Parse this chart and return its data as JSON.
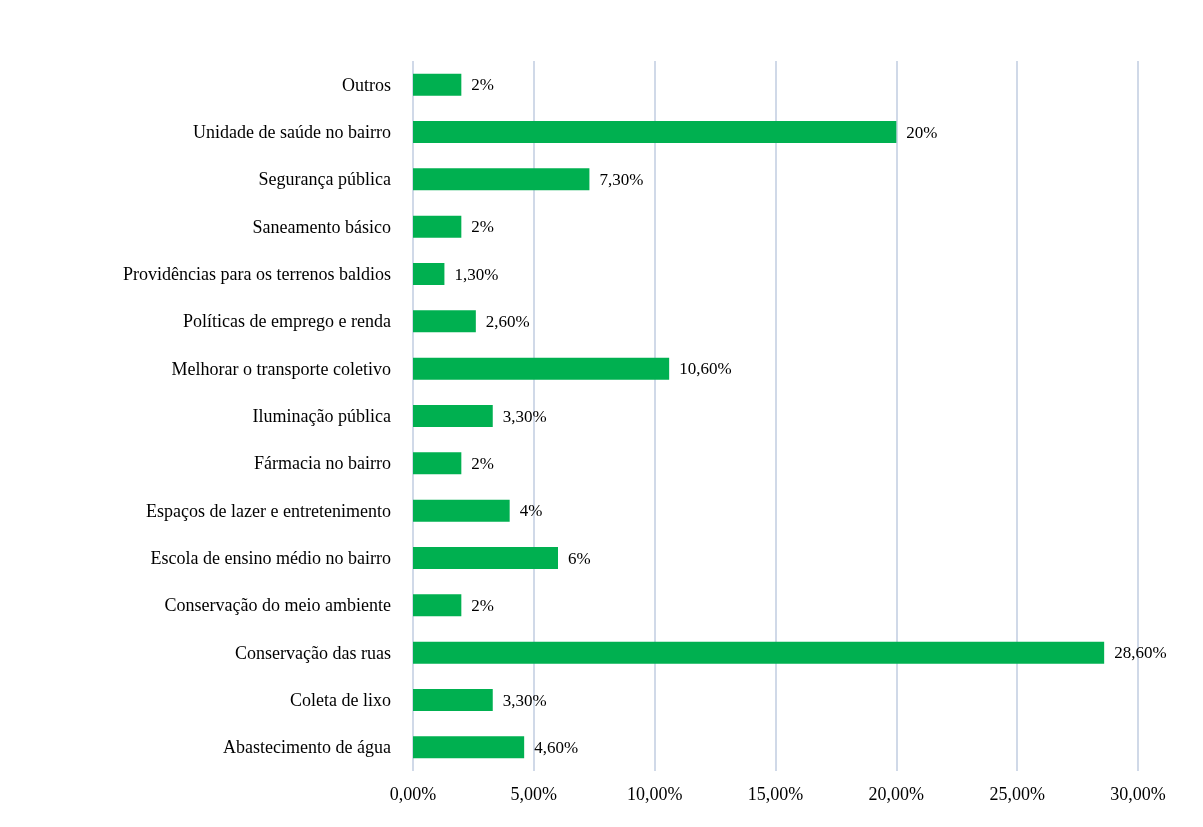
{
  "chart_data": {
    "type": "bar",
    "orientation": "horizontal",
    "categories": [
      "Outros",
      "Unidade de saúde no bairro",
      "Segurança pública",
      "Saneamento básico",
      "Providências para os terrenos baldios",
      "Políticas de emprego e renda",
      "Melhorar o transporte coletivo",
      "Iluminação pública",
      "Fármacia no bairro",
      "Espaços de lazer e entretenimento",
      "Escola de ensino médio no bairro",
      "Conservação do meio ambiente",
      "Conservação das ruas",
      "Coleta de lixo",
      "Abastecimento de água"
    ],
    "values": [
      2,
      20,
      7.3,
      2,
      1.3,
      2.6,
      10.6,
      3.3,
      2,
      4,
      6,
      2,
      28.6,
      3.3,
      4.6
    ],
    "value_labels": [
      "2%",
      "20%",
      "7,30%",
      "2%",
      "1,30%",
      "2,60%",
      "10,60%",
      "3,30%",
      "2%",
      "4%",
      "6%",
      "2%",
      "28,60%",
      "3,30%",
      "4,60%"
    ],
    "color": "#00b050",
    "xlim": [
      0,
      30
    ],
    "xticks": [
      {
        "value": 0,
        "label": "0,00%"
      },
      {
        "value": 5,
        "label": "5,00%"
      },
      {
        "value": 10,
        "label": "10,00%"
      },
      {
        "value": 15,
        "label": "15,00%"
      },
      {
        "value": 20,
        "label": "20,00%"
      },
      {
        "value": 25,
        "label": "25,00%"
      },
      {
        "value": 30,
        "label": "30,00%"
      }
    ],
    "grid": "x"
  }
}
